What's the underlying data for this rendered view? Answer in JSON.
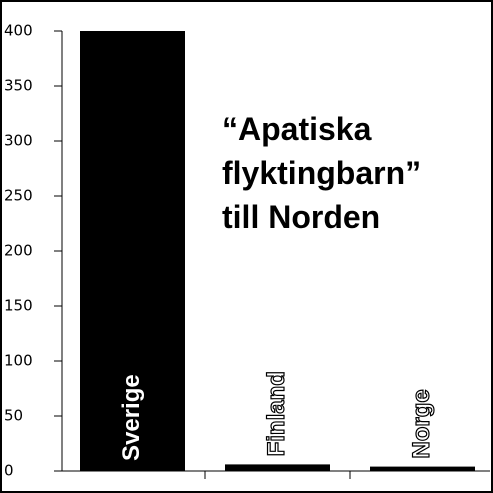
{
  "chart_data": {
    "type": "bar",
    "title": [
      "“Apatiska",
      "flyktingbarn”",
      "till Norden"
    ],
    "categories": [
      "Sverige",
      "Finland",
      "Norge"
    ],
    "values": [
      400,
      6,
      4
    ],
    "color": "#000000",
    "ylim": [
      0,
      400
    ],
    "yticks": [
      0,
      50,
      100,
      150,
      200,
      250,
      300,
      350,
      400
    ]
  }
}
